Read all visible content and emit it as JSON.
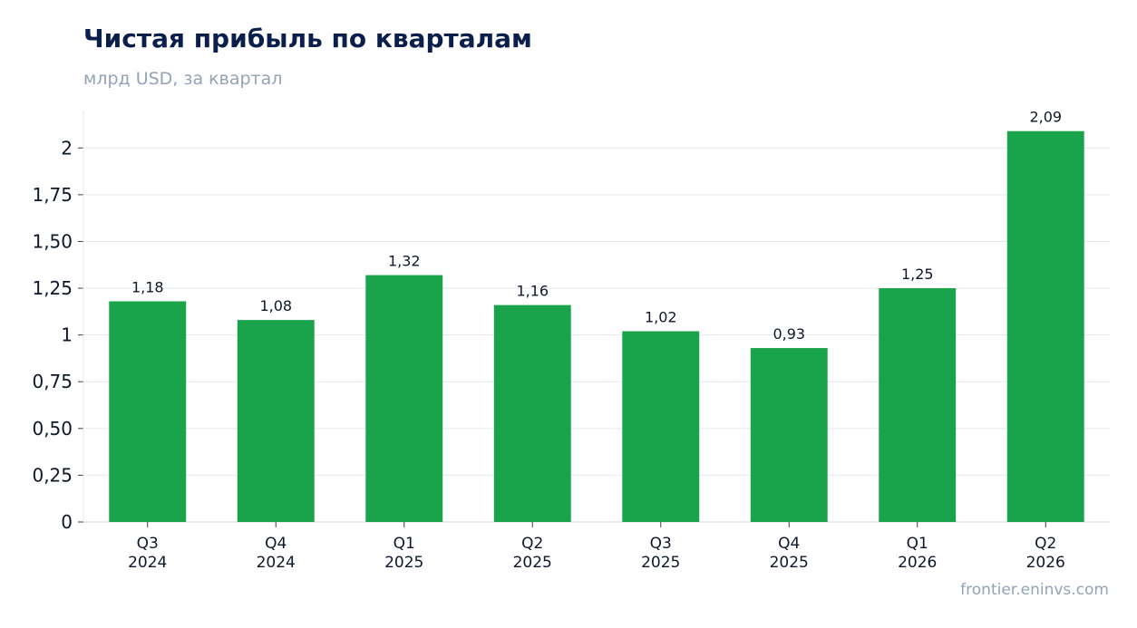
{
  "title": "Чистая прибыль по кварталам",
  "subtitle": "млрд USD, за квартал",
  "source": "frontier.eninvs.com",
  "colors": {
    "bar": "#19a34a",
    "grid": "#e5e7eb",
    "axis": "#d1d5db",
    "title": "#0b1f4d",
    "muted": "#94a3b8"
  },
  "chart_data": {
    "type": "bar",
    "title": "Чистая прибыль по кварталам",
    "subtitle": "млрд USD, за квартал",
    "categories": [
      [
        "Q3",
        "2024"
      ],
      [
        "Q4",
        "2024"
      ],
      [
        "Q1",
        "2025"
      ],
      [
        "Q2",
        "2025"
      ],
      [
        "Q3",
        "2025"
      ],
      [
        "Q4",
        "2025"
      ],
      [
        "Q1",
        "2026"
      ],
      [
        "Q2",
        "2026"
      ]
    ],
    "values": [
      1.18,
      1.08,
      1.32,
      1.16,
      1.02,
      0.93,
      1.25,
      2.09
    ],
    "value_labels": [
      "1,18",
      "1,08",
      "1,32",
      "1,16",
      "1,02",
      "0,93",
      "1,25",
      "2,09"
    ],
    "yticks": [
      0,
      0.25,
      0.5,
      0.75,
      1,
      1.25,
      1.5,
      1.75,
      2
    ],
    "ytick_labels": [
      "0",
      "0,25",
      "0,50",
      "0,75",
      "1",
      "1,25",
      "1,50",
      "1,75",
      "2"
    ],
    "ylim": [
      0,
      2.2
    ],
    "grid": true,
    "legend": "none"
  }
}
